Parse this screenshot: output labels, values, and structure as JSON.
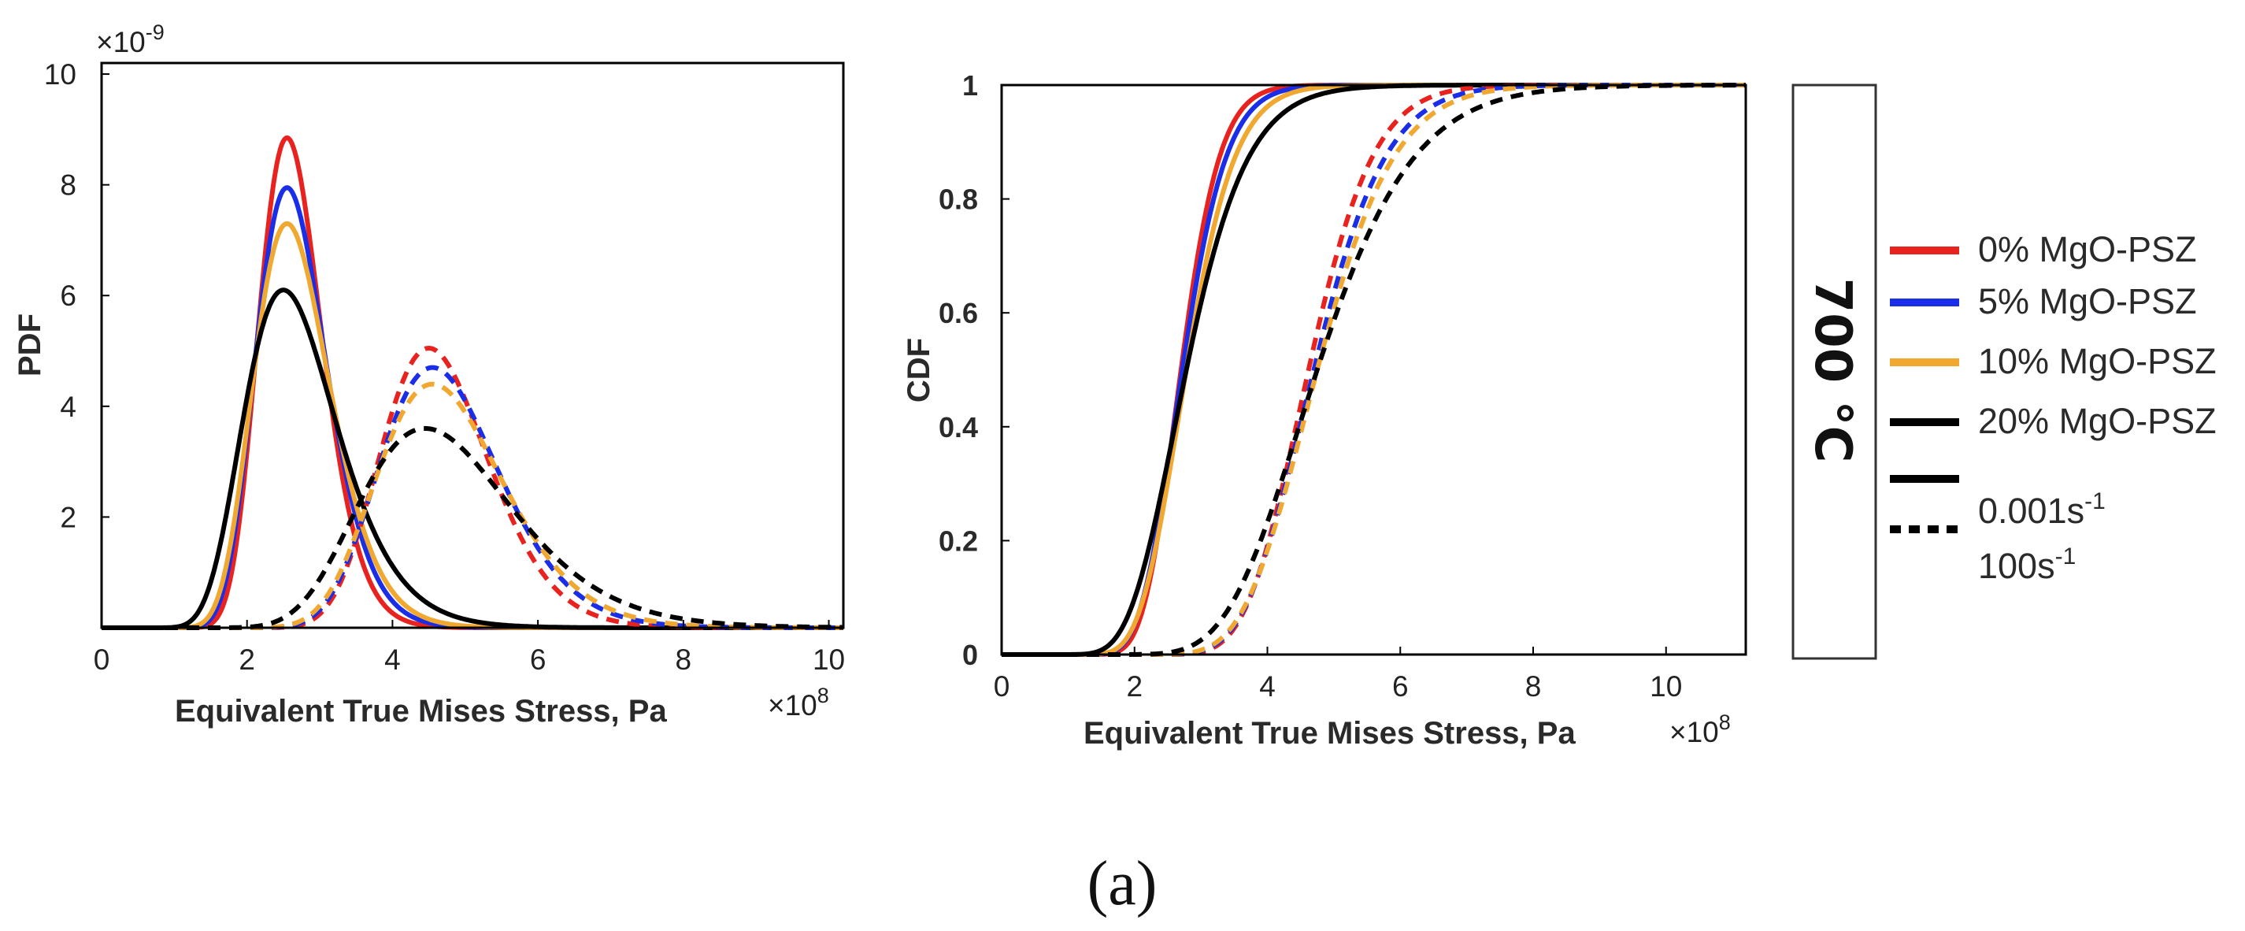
{
  "figure": {
    "caption": "(a)",
    "temperature_label": "700 °C"
  },
  "legend": {
    "entries": [
      {
        "label": "0% MgO-PSZ",
        "color": "#e8231f",
        "style": "solid"
      },
      {
        "label": "5% MgO-PSZ",
        "color": "#1a2ee8",
        "style": "solid"
      },
      {
        "label": "10% MgO-PSZ",
        "color": "#f0a830",
        "style": "solid"
      },
      {
        "label": "20% MgO-PSZ",
        "color": "#000000",
        "style": "solid"
      }
    ],
    "rate_entries": [
      {
        "base": "0.001s",
        "exponent": "-1",
        "style": "solid"
      },
      {
        "base": "100s",
        "exponent": "-1",
        "style": "dashed"
      }
    ]
  },
  "chart_data": [
    {
      "type": "line",
      "name": "pdf",
      "title": "",
      "xlabel": "Equivalent True Mises Stress, Pa",
      "ylabel": "PDF",
      "x_multiplier": "×10",
      "x_multiplier_exp": "8",
      "y_multiplier": "×10",
      "y_multiplier_exp": "-9",
      "xlim": [
        0,
        10.2
      ],
      "ylim": [
        0,
        10.2
      ],
      "xticks": [
        0,
        2,
        4,
        6,
        8,
        10
      ],
      "yticks": [
        2,
        4,
        6,
        8,
        10
      ],
      "curve_model": "lognormal_pdf",
      "series": [
        {
          "name": "0% MgO-PSZ, 0.001s-1",
          "color": "#e8231f",
          "dashed": false,
          "peak_x": 2.55,
          "peak_y": 8.85,
          "sigma": 0.17
        },
        {
          "name": "5% MgO-PSZ, 0.001s-1",
          "color": "#1a2ee8",
          "dashed": false,
          "peak_x": 2.55,
          "peak_y": 7.95,
          "sigma": 0.19
        },
        {
          "name": "10% MgO-PSZ, 0.001s-1",
          "color": "#f0a830",
          "dashed": false,
          "peak_x": 2.55,
          "peak_y": 7.3,
          "sigma": 0.205
        },
        {
          "name": "20% MgO-PSZ, 0.001s-1",
          "color": "#000000",
          "dashed": false,
          "peak_x": 2.5,
          "peak_y": 6.1,
          "sigma": 0.255
        },
        {
          "name": "0% MgO-PSZ, 100s-1",
          "color": "#e8231f",
          "dashed": true,
          "peak_x": 4.5,
          "peak_y": 5.05,
          "sigma": 0.165
        },
        {
          "name": "5% MgO-PSZ, 100s-1",
          "color": "#1a2ee8",
          "dashed": true,
          "peak_x": 4.55,
          "peak_y": 4.7,
          "sigma": 0.18
        },
        {
          "name": "10% MgO-PSZ, 100s-1",
          "color": "#f0a830",
          "dashed": true,
          "peak_x": 4.55,
          "peak_y": 4.4,
          "sigma": 0.19
        },
        {
          "name": "20% MgO-PSZ, 100s-1",
          "color": "#000000",
          "dashed": true,
          "peak_x": 4.45,
          "peak_y": 3.6,
          "sigma": 0.235
        }
      ]
    },
    {
      "type": "line",
      "name": "cdf",
      "title": "",
      "xlabel": "Equivalent True Mises Stress, Pa",
      "ylabel": "CDF",
      "x_multiplier": "×10",
      "x_multiplier_exp": "8",
      "xlim": [
        0,
        11.2
      ],
      "ylim": [
        0,
        1
      ],
      "xticks": [
        0,
        2,
        4,
        6,
        8,
        10
      ],
      "yticks": [
        0,
        0.2,
        0.4,
        0.6,
        0.8,
        1
      ],
      "ytick_labels": [
        "0",
        "0.2",
        "0.4",
        "0.6",
        "0.8",
        "1"
      ],
      "curve_model": "lognormal_cdf",
      "series": [
        {
          "name": "0% MgO-PSZ, 0.001s-1",
          "color": "#e8231f",
          "dashed": false,
          "median": 2.7,
          "sigma": 0.17
        },
        {
          "name": "5% MgO-PSZ, 0.001s-1",
          "color": "#1a2ee8",
          "dashed": false,
          "median": 2.72,
          "sigma": 0.19
        },
        {
          "name": "10% MgO-PSZ, 0.001s-1",
          "color": "#f0a830",
          "dashed": false,
          "median": 2.78,
          "sigma": 0.205
        },
        {
          "name": "20% MgO-PSZ, 0.001s-1",
          "color": "#000000",
          "dashed": false,
          "median": 2.78,
          "sigma": 0.255
        },
        {
          "name": "0% MgO-PSZ, 100s-1",
          "color": "#e8231f",
          "dashed": true,
          "median": 4.62,
          "sigma": 0.165
        },
        {
          "name": "5% MgO-PSZ, 100s-1",
          "color": "#1a2ee8",
          "dashed": true,
          "median": 4.7,
          "sigma": 0.18
        },
        {
          "name": "10% MgO-PSZ, 100s-1",
          "color": "#f0a830",
          "dashed": true,
          "median": 4.75,
          "sigma": 0.19
        },
        {
          "name": "20% MgO-PSZ, 100s-1",
          "color": "#000000",
          "dashed": true,
          "median": 4.75,
          "sigma": 0.235
        }
      ]
    }
  ]
}
